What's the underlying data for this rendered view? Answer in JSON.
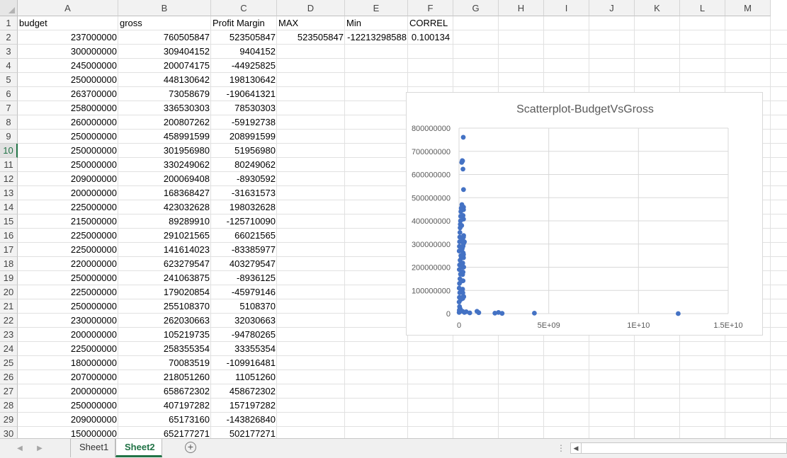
{
  "columns": [
    "A",
    "B",
    "C",
    "D",
    "E",
    "F",
    "G",
    "H",
    "I",
    "J",
    "K",
    "L",
    "M"
  ],
  "rows": [
    [
      "budget",
      "gross",
      "Profit Margin",
      "MAX",
      "Min",
      "CORREL"
    ],
    [
      "237000000",
      "760505847",
      "523505847",
      "523505847",
      "-12213298588",
      "0.100134"
    ],
    [
      "300000000",
      "309404152",
      "9404152"
    ],
    [
      "245000000",
      "200074175",
      "-44925825"
    ],
    [
      "250000000",
      "448130642",
      "198130642"
    ],
    [
      "263700000",
      "73058679",
      "-190641321"
    ],
    [
      "258000000",
      "336530303",
      "78530303"
    ],
    [
      "260000000",
      "200807262",
      "-59192738"
    ],
    [
      "250000000",
      "458991599",
      "208991599"
    ],
    [
      "250000000",
      "301956980",
      "51956980"
    ],
    [
      "250000000",
      "330249062",
      "80249062"
    ],
    [
      "209000000",
      "200069408",
      "-8930592"
    ],
    [
      "200000000",
      "168368427",
      "-31631573"
    ],
    [
      "225000000",
      "423032628",
      "198032628"
    ],
    [
      "215000000",
      "89289910",
      "-125710090"
    ],
    [
      "225000000",
      "291021565",
      "66021565"
    ],
    [
      "225000000",
      "141614023",
      "-83385977"
    ],
    [
      "220000000",
      "623279547",
      "403279547"
    ],
    [
      "250000000",
      "241063875",
      "-8936125"
    ],
    [
      "225000000",
      "179020854",
      "-45979146"
    ],
    [
      "250000000",
      "255108370",
      "5108370"
    ],
    [
      "230000000",
      "262030663",
      "32030663"
    ],
    [
      "200000000",
      "105219735",
      "-94780265"
    ],
    [
      "225000000",
      "258355354",
      "33355354"
    ],
    [
      "180000000",
      "70083519",
      "-109916481"
    ],
    [
      "207000000",
      "218051260",
      "11051260"
    ],
    [
      "200000000",
      "658672302",
      "458672302"
    ],
    [
      "250000000",
      "407197282",
      "157197282"
    ],
    [
      "209000000",
      "65173160",
      "-143826840"
    ],
    [
      "150000000",
      "652177271",
      "502177271"
    ]
  ],
  "active_row": 10,
  "sheet_tabs": [
    {
      "label": "Sheet1",
      "active": false
    },
    {
      "label": "Sheet2",
      "active": true
    }
  ],
  "icons": {
    "prev_sheet": "chevron-left-icon",
    "next_sheet": "chevron-right-icon",
    "add_sheet": "plus-circle-icon",
    "scroll_left": "triangle-left-icon"
  },
  "colors": {
    "accent": "#217346",
    "marker": "#4472c4",
    "grid": "#d9d9d9"
  },
  "chart_data": {
    "type": "scatter",
    "title": "Scatterplot-BudgetVsGross",
    "xlabel": "",
    "ylabel": "",
    "xlim": [
      0,
      15000000000
    ],
    "ylim": [
      0,
      800000000
    ],
    "x_ticks": [
      0,
      5000000000,
      10000000000,
      15000000000
    ],
    "x_tick_labels": [
      "0",
      "5E+09",
      "1E+10",
      "1.5E+10"
    ],
    "y_ticks": [
      0,
      100000000,
      200000000,
      300000000,
      400000000,
      500000000,
      600000000,
      700000000,
      800000000
    ],
    "y_tick_labels": [
      "0",
      "100000000",
      "200000000",
      "300000000",
      "400000000",
      "500000000",
      "600000000",
      "700000000",
      "800000000"
    ],
    "grid": true,
    "legend": "none",
    "points": [
      [
        237000000,
        760505847
      ],
      [
        300000000,
        309404152
      ],
      [
        245000000,
        200074175
      ],
      [
        250000000,
        448130642
      ],
      [
        263700000,
        73058679
      ],
      [
        258000000,
        336530303
      ],
      [
        260000000,
        200807262
      ],
      [
        250000000,
        458991599
      ],
      [
        250000000,
        301956980
      ],
      [
        250000000,
        330249062
      ],
      [
        209000000,
        200069408
      ],
      [
        200000000,
        168368427
      ],
      [
        225000000,
        423032628
      ],
      [
        215000000,
        89289910
      ],
      [
        225000000,
        291021565
      ],
      [
        225000000,
        141614023
      ],
      [
        220000000,
        623279547
      ],
      [
        250000000,
        241063875
      ],
      [
        225000000,
        179020854
      ],
      [
        250000000,
        255108370
      ],
      [
        230000000,
        262030663
      ],
      [
        200000000,
        105219735
      ],
      [
        225000000,
        258355354
      ],
      [
        180000000,
        70083519
      ],
      [
        207000000,
        218051260
      ],
      [
        200000000,
        658672302
      ],
      [
        250000000,
        407197282
      ],
      [
        209000000,
        65173160
      ],
      [
        150000000,
        652177271
      ],
      [
        180000000,
        660000000
      ],
      [
        250000000,
        535000000
      ],
      [
        160000000,
        470000000
      ],
      [
        120000000,
        455000000
      ],
      [
        100000000,
        440000000
      ],
      [
        90000000,
        420000000
      ],
      [
        80000000,
        400000000
      ],
      [
        70000000,
        385000000
      ],
      [
        60000000,
        370000000
      ],
      [
        50000000,
        350000000
      ],
      [
        40000000,
        330000000
      ],
      [
        30000000,
        310000000
      ],
      [
        20000000,
        290000000
      ],
      [
        10000000,
        270000000
      ],
      [
        100000000,
        250000000
      ],
      [
        60000000,
        230000000
      ],
      [
        30000000,
        210000000
      ],
      [
        15000000,
        190000000
      ],
      [
        80000000,
        170000000
      ],
      [
        50000000,
        150000000
      ],
      [
        25000000,
        130000000
      ],
      [
        10000000,
        110000000
      ],
      [
        40000000,
        90000000
      ],
      [
        20000000,
        70000000
      ],
      [
        5000000,
        50000000
      ],
      [
        30000000,
        30000000
      ],
      [
        15000000,
        15000000
      ],
      [
        5000000,
        5000000
      ],
      [
        150000000,
        380000000
      ],
      [
        200000000,
        320000000
      ],
      [
        180000000,
        280000000
      ],
      [
        130000000,
        240000000
      ],
      [
        110000000,
        210000000
      ],
      [
        170000000,
        180000000
      ],
      [
        140000000,
        140000000
      ],
      [
        120000000,
        100000000
      ],
      [
        90000000,
        60000000
      ],
      [
        70000000,
        20000000
      ],
      [
        200000000,
        10000000
      ],
      [
        300000000,
        5000000
      ],
      [
        400000000,
        8000000
      ],
      [
        600000000,
        3000000
      ],
      [
        1000000000,
        10000000
      ],
      [
        1100000000,
        4000000
      ],
      [
        2000000000,
        2000000
      ],
      [
        2200000000,
        5000000
      ],
      [
        2400000000,
        1000000
      ],
      [
        4200000000,
        2000000
      ],
      [
        12213298588,
        0
      ]
    ]
  }
}
